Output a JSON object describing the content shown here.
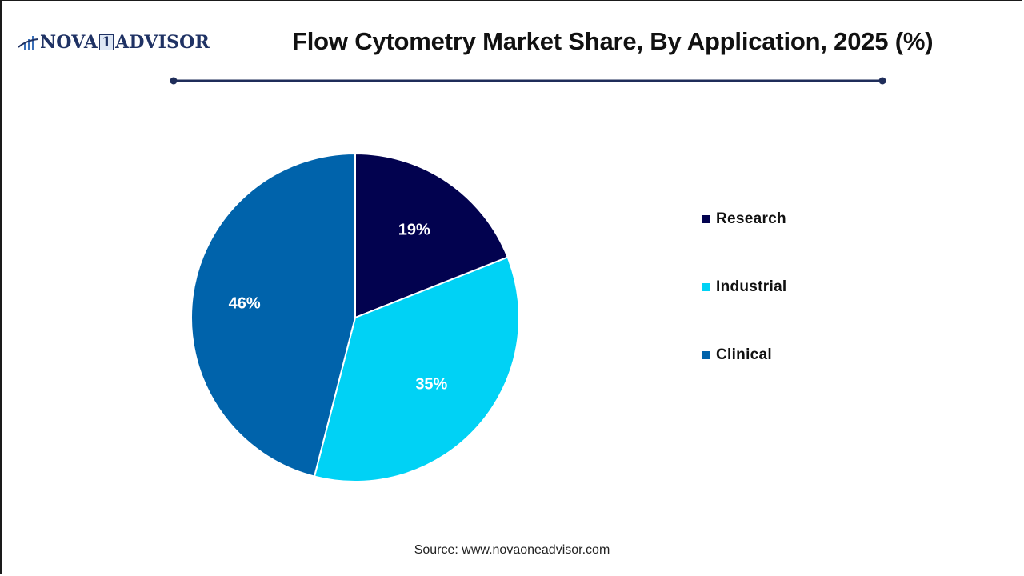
{
  "logo": {
    "text_before": "NOVA",
    "text_one": "1",
    "text_after": "ADVISOR"
  },
  "header": {
    "title": "Flow Cytometry Market Share, By Application, 2025 (%)"
  },
  "colors": {
    "research": "#02024f",
    "industrial": "#00d2f5",
    "clinical": "#0063ab",
    "divider": "#1f2d5a"
  },
  "chart_data": {
    "type": "pie",
    "title": "Flow Cytometry Market Share, By Application, 2025 (%)",
    "categories": [
      "Research",
      "Industrial",
      "Clinical"
    ],
    "values": [
      19,
      35,
      46
    ],
    "labels": [
      "19%",
      "35%",
      "46%"
    ],
    "colors": [
      "#02024f",
      "#00d2f5",
      "#0063ab"
    ],
    "start_angle": "12 o'clock, clockwise",
    "legend_position": "right"
  },
  "legend": {
    "items": [
      {
        "label": "Research",
        "color": "#02024f"
      },
      {
        "label": "Industrial",
        "color": "#00d2f5"
      },
      {
        "label": "Clinical",
        "color": "#0063ab"
      }
    ]
  },
  "footer": {
    "source": "Source: www.novaoneadvisor.com"
  }
}
